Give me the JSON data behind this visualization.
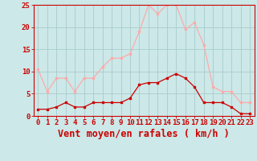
{
  "x": [
    0,
    1,
    2,
    3,
    4,
    5,
    6,
    7,
    8,
    9,
    10,
    11,
    12,
    13,
    14,
    15,
    16,
    17,
    18,
    19,
    20,
    21,
    22,
    23
  ],
  "avg": [
    1.5,
    1.5,
    2.0,
    3.0,
    2.0,
    2.0,
    3.0,
    3.0,
    3.0,
    3.0,
    4.0,
    7.0,
    7.5,
    7.5,
    8.5,
    9.5,
    8.5,
    6.5,
    3.0,
    3.0,
    3.0,
    2.0,
    0.5,
    0.5
  ],
  "gust": [
    10.5,
    5.5,
    8.5,
    8.5,
    5.5,
    8.5,
    8.5,
    11.0,
    13.0,
    13.0,
    14.0,
    19.0,
    25.0,
    23.0,
    25.0,
    25.0,
    19.5,
    21.0,
    16.0,
    6.5,
    5.5,
    5.5,
    3.0,
    3.0
  ],
  "avg_color": "#cc0000",
  "gust_color": "#ffaaaa",
  "bg_color": "#cce8e8",
  "grid_color": "#aacccc",
  "xlabel": "Vent moyen/en rafales ( km/h )",
  "ylim": [
    0,
    25
  ],
  "yticks": [
    0,
    5,
    10,
    15,
    20,
    25
  ],
  "axis_color": "#cc0000",
  "tick_fontsize": 6.5,
  "label_fontsize": 8.5
}
